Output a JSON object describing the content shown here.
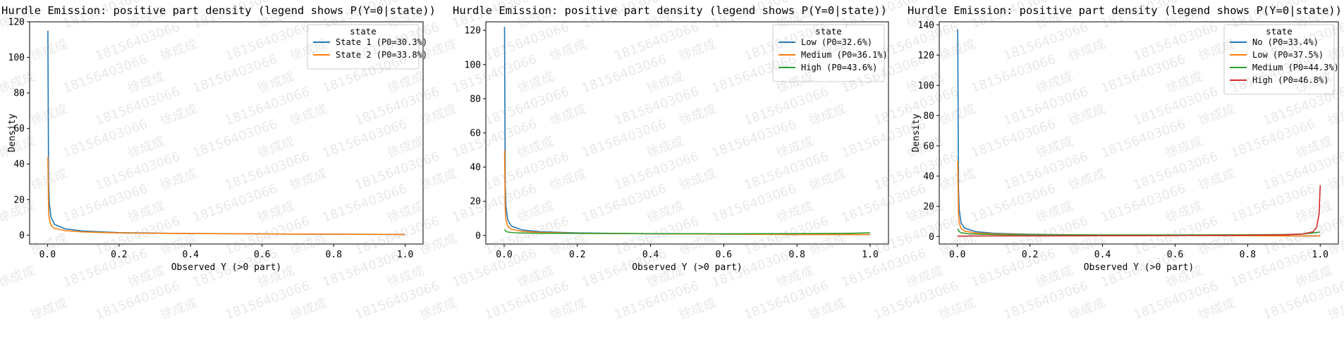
{
  "chart_data": [
    {
      "type": "line",
      "title": "Hurdle Emission: positive part density (legend shows P(Y=0|state))",
      "xlabel": "Observed Y (>0 part)",
      "ylabel": "Density",
      "xlim": [
        -0.05,
        1.05
      ],
      "ylim": [
        -5,
        120
      ],
      "xticks": [
        "0.0",
        "0.2",
        "0.4",
        "0.6",
        "0.8",
        "1.0"
      ],
      "yticks": [
        "0",
        "20",
        "40",
        "60",
        "80",
        "100",
        "120"
      ],
      "xtick_values": [
        0,
        0.2,
        0.4,
        0.6,
        0.8,
        1.0
      ],
      "ytick_values": [
        0,
        20,
        40,
        60,
        80,
        100,
        120
      ],
      "legend_title": "state",
      "legend_position": "top-right",
      "series": [
        {
          "name": "State 1  (P0=30.3%)",
          "color": "#1f77b4",
          "x": [
            0.001,
            0.003,
            0.005,
            0.01,
            0.02,
            0.05,
            0.1,
            0.2,
            0.4,
            0.6,
            0.8,
            0.95,
            1.0
          ],
          "y": [
            115,
            30,
            18,
            10,
            6,
            3.5,
            2.3,
            1.4,
            0.9,
            0.7,
            0.5,
            0.4,
            0.4
          ]
        },
        {
          "name": "State 2  (P0=33.8%)",
          "color": "#ff7f0e",
          "x": [
            0.001,
            0.003,
            0.005,
            0.01,
            0.02,
            0.05,
            0.1,
            0.2,
            0.4,
            0.6,
            0.8,
            0.95,
            1.0
          ],
          "y": [
            44,
            14,
            9,
            5.5,
            3.8,
            2.5,
            1.8,
            1.2,
            0.9,
            0.7,
            0.5,
            0.4,
            0.3
          ]
        }
      ]
    },
    {
      "type": "line",
      "title": "Hurdle Emission: positive part density (legend shows P(Y=0|state))",
      "xlabel": "Observed Y (>0 part)",
      "ylabel": "",
      "xlim": [
        -0.05,
        1.05
      ],
      "ylim": [
        -5,
        125
      ],
      "xticks": [
        "0.0",
        "0.2",
        "0.4",
        "0.6",
        "0.8",
        "1.0"
      ],
      "yticks": [
        "0",
        "20",
        "40",
        "60",
        "80",
        "100",
        "120"
      ],
      "xtick_values": [
        0,
        0.2,
        0.4,
        0.6,
        0.8,
        1.0
      ],
      "ytick_values": [
        0,
        20,
        40,
        60,
        80,
        100,
        120
      ],
      "legend_title": "state",
      "legend_position": "top-right",
      "series": [
        {
          "name": "Low  (P0=32.6%)",
          "color": "#1f77b4",
          "x": [
            0.001,
            0.003,
            0.005,
            0.01,
            0.02,
            0.05,
            0.1,
            0.2,
            0.4,
            0.6,
            0.8,
            0.95,
            1.0
          ],
          "y": [
            122,
            30,
            17,
            9,
            5.5,
            3.2,
            2.2,
            1.5,
            1.0,
            0.8,
            0.6,
            0.5,
            0.5
          ]
        },
        {
          "name": "Medium  (P0=36.1%)",
          "color": "#ff7f0e",
          "x": [
            0.001,
            0.003,
            0.005,
            0.01,
            0.02,
            0.05,
            0.1,
            0.2,
            0.4,
            0.6,
            0.8,
            0.95,
            1.0
          ],
          "y": [
            50,
            15,
            9,
            5.5,
            3.6,
            2.4,
            1.8,
            1.3,
            1.0,
            0.8,
            0.6,
            0.5,
            0.5
          ]
        },
        {
          "name": "High  (P0=43.6%)",
          "color": "#2ca02c",
          "x": [
            0.001,
            0.005,
            0.01,
            0.03,
            0.06,
            0.1,
            0.2,
            0.4,
            0.6,
            0.8,
            0.95,
            1.0
          ],
          "y": [
            3.5,
            2.4,
            2.0,
            1.6,
            1.4,
            1.3,
            1.2,
            1.1,
            1.0,
            1.1,
            1.3,
            1.6
          ]
        }
      ]
    },
    {
      "type": "line",
      "title": "Hurdle Emission: positive part density (legend shows P(Y=0|state))",
      "xlabel": "Observed Y (>0 part)",
      "ylabel": "Density",
      "xlim": [
        -0.05,
        1.05
      ],
      "ylim": [
        -5,
        142
      ],
      "xticks": [
        "0.0",
        "0.2",
        "0.4",
        "0.6",
        "0.8",
        "1.0"
      ],
      "yticks": [
        "0",
        "20",
        "40",
        "60",
        "80",
        "100",
        "120",
        "140"
      ],
      "xtick_values": [
        0,
        0.2,
        0.4,
        0.6,
        0.8,
        1.0
      ],
      "ytick_values": [
        0,
        20,
        40,
        60,
        80,
        100,
        120,
        140
      ],
      "legend_title": "state",
      "legend_position": "top-right",
      "series": [
        {
          "name": "No  (P0=33.4%)",
          "color": "#1f77b4",
          "x": [
            0.001,
            0.003,
            0.005,
            0.01,
            0.02,
            0.05,
            0.1,
            0.2,
            0.4,
            0.6,
            0.8,
            0.95,
            1.0
          ],
          "y": [
            137,
            32,
            18,
            9,
            5.5,
            3.2,
            2.1,
            1.4,
            0.9,
            0.7,
            0.5,
            0.4,
            0.4
          ]
        },
        {
          "name": "Low  (P0=37.5%)",
          "color": "#ff7f0e",
          "x": [
            0.001,
            0.003,
            0.005,
            0.01,
            0.02,
            0.05,
            0.1,
            0.2,
            0.4,
            0.6,
            0.8,
            0.95,
            1.0
          ],
          "y": [
            50,
            15,
            9,
            5.5,
            3.6,
            2.3,
            1.7,
            1.2,
            0.9,
            0.7,
            0.5,
            0.4,
            0.4
          ]
        },
        {
          "name": "Medium  (P0=44.3%)",
          "color": "#2ca02c",
          "x": [
            0.001,
            0.005,
            0.01,
            0.03,
            0.06,
            0.1,
            0.2,
            0.4,
            0.6,
            0.8,
            0.9,
            0.95,
            0.99,
            1.0
          ],
          "y": [
            5,
            3.2,
            2.5,
            1.8,
            1.5,
            1.3,
            1.1,
            1.0,
            1.0,
            1.1,
            1.3,
            1.6,
            2.6,
            3.0
          ]
        },
        {
          "name": "High  (P0=46.8%)",
          "color": "#d62728",
          "x": [
            0.0,
            0.05,
            0.1,
            0.2,
            0.4,
            0.6,
            0.8,
            0.9,
            0.95,
            0.98,
            0.99,
            0.997,
            1.0
          ],
          "y": [
            0.2,
            0.3,
            0.4,
            0.4,
            0.5,
            0.6,
            0.8,
            1.1,
            1.6,
            3.0,
            6.0,
            15,
            34
          ]
        }
      ]
    }
  ]
}
